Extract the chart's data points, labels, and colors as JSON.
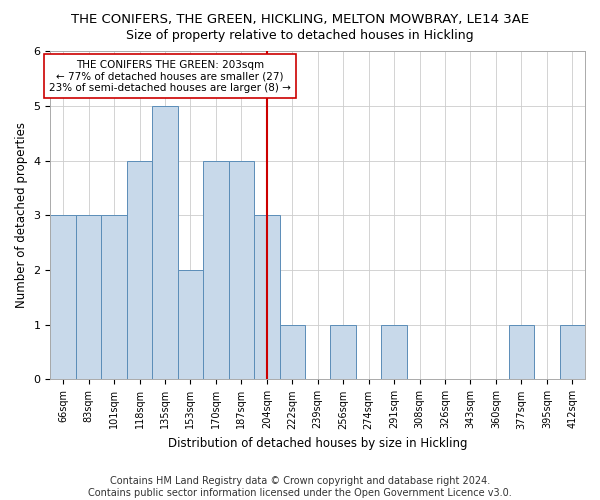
{
  "title": "THE CONIFERS, THE GREEN, HICKLING, MELTON MOWBRAY, LE14 3AE",
  "subtitle": "Size of property relative to detached houses in Hickling",
  "xlabel": "Distribution of detached houses by size in Hickling",
  "ylabel": "Number of detached properties",
  "categories": [
    "66sqm",
    "83sqm",
    "101sqm",
    "118sqm",
    "135sqm",
    "153sqm",
    "170sqm",
    "187sqm",
    "204sqm",
    "222sqm",
    "239sqm",
    "256sqm",
    "274sqm",
    "291sqm",
    "308sqm",
    "326sqm",
    "343sqm",
    "360sqm",
    "377sqm",
    "395sqm",
    "412sqm"
  ],
  "values": [
    3,
    3,
    3,
    4,
    5,
    2,
    4,
    4,
    3,
    1,
    0,
    1,
    0,
    1,
    0,
    0,
    0,
    0,
    1,
    0,
    1
  ],
  "highlight_index": 8,
  "bar_color": "#c8d9ea",
  "bar_edge_color": "#5b8db8",
  "highlight_line_color": "#cc0000",
  "annotation_text": "THE CONIFERS THE GREEN: 203sqm\n← 77% of detached houses are smaller (27)\n23% of semi-detached houses are larger (8) →",
  "annotation_box_color": "#ffffff",
  "annotation_box_edge": "#cc0000",
  "ylim": [
    0,
    6
  ],
  "yticks": [
    0,
    1,
    2,
    3,
    4,
    5,
    6
  ],
  "footer_line1": "Contains HM Land Registry data © Crown copyright and database right 2024.",
  "footer_line2": "Contains public sector information licensed under the Open Government Licence v3.0.",
  "title_fontsize": 9.5,
  "subtitle_fontsize": 9,
  "axis_label_fontsize": 8.5,
  "tick_fontsize": 7,
  "annotation_fontsize": 7.5,
  "footer_fontsize": 7
}
